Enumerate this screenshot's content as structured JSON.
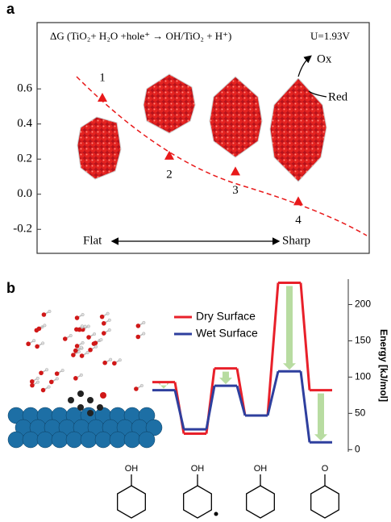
{
  "chart_data": [
    {
      "type": "scatter",
      "panel_label": "a",
      "title": "ΔG (TiO₂+ H₂O +hole⁺ → OH/TiO₂ + H⁺)",
      "annotation": "U=1.93V",
      "x_labels": [
        "Flat",
        "Sharp"
      ],
      "redox_labels": [
        "Ox",
        "Red"
      ],
      "categories": [
        "1",
        "2",
        "3",
        "4"
      ],
      "values": [
        0.55,
        0.22,
        0.13,
        -0.04
      ],
      "color": "#e8191a",
      "ylim": [
        -0.3,
        0.95
      ],
      "yticks": [
        -0.2,
        {
          "value": 0,
          "label": "0.0"
        },
        0.2,
        0.4,
        0.6
      ],
      "grid": false
    },
    {
      "type": "line",
      "panel_label": "b",
      "ylabel": "Energy [kJ/mol]",
      "categories": [
        null,
        null,
        null,
        null,
        null,
        null
      ],
      "series": [
        {
          "name": "Dry Surface",
          "color": "#e8202a",
          "values": [
            93,
            22,
            112,
            47,
            230,
            82
          ]
        },
        {
          "name": "Wet Surface",
          "color": "#2e3f9e",
          "values": [
            82,
            28,
            88,
            47,
            108,
            10
          ]
        }
      ],
      "ylim": [
        -3,
        235
      ],
      "yticks": [
        0,
        50,
        100,
        150,
        200
      ],
      "grid": false,
      "structures": [
        "OH",
        "OH",
        "OH",
        "O"
      ]
    }
  ]
}
